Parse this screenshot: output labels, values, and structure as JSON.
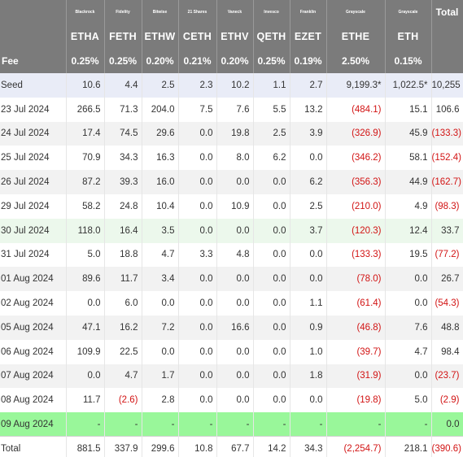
{
  "issuers": [
    "Blackrock",
    "Fidelity",
    "Bitwise",
    "21 Shares",
    "Vaneck",
    "Invesco",
    "Franklin",
    "Grayscale",
    "Grayscale"
  ],
  "total_header": "Total",
  "tickers": [
    "ETHA",
    "FETH",
    "ETHW",
    "CETH",
    "ETHV",
    "QETH",
    "EZET",
    "ETHE",
    "ETH"
  ],
  "fee_label": "Fee",
  "fees": [
    "0.25%",
    "0.25%",
    "0.20%",
    "0.21%",
    "0.20%",
    "0.25%",
    "0.19%",
    "2.50%",
    "0.15%"
  ],
  "rows": [
    {
      "date": "Seed",
      "cells": [
        "10.6",
        "4.4",
        "2.5",
        "2.3",
        "10.2",
        "1.1",
        "2.7",
        "9,199.3*",
        "1,022.5*",
        "10,255"
      ]
    },
    {
      "date": "23 Jul 2024",
      "cells": [
        "266.5",
        "71.3",
        "204.0",
        "7.5",
        "7.6",
        "5.5",
        "13.2",
        "(484.1)",
        "15.1",
        "106.6"
      ]
    },
    {
      "date": "24 Jul 2024",
      "cells": [
        "17.4",
        "74.5",
        "29.6",
        "0.0",
        "19.8",
        "2.5",
        "3.9",
        "(326.9)",
        "45.9",
        "(133.3)"
      ]
    },
    {
      "date": "25 Jul 2024",
      "cells": [
        "70.9",
        "34.3",
        "16.3",
        "0.0",
        "8.0",
        "6.2",
        "0.0",
        "(346.2)",
        "58.1",
        "(152.4)"
      ]
    },
    {
      "date": "26 Jul 2024",
      "cells": [
        "87.2",
        "39.3",
        "16.0",
        "0.0",
        "0.0",
        "0.0",
        "6.2",
        "(356.3)",
        "44.9",
        "(162.7)"
      ]
    },
    {
      "date": "29 Jul 2024",
      "cells": [
        "58.2",
        "24.8",
        "10.4",
        "0.0",
        "10.9",
        "0.0",
        "2.5",
        "(210.0)",
        "4.9",
        "(98.3)"
      ]
    },
    {
      "date": "30 Jul 2024",
      "cells": [
        "118.0",
        "16.4",
        "3.5",
        "0.0",
        "0.0",
        "0.0",
        "3.7",
        "(120.3)",
        "12.4",
        "33.7"
      ]
    },
    {
      "date": "31 Jul 2024",
      "cells": [
        "5.0",
        "18.8",
        "4.7",
        "3.3",
        "4.8",
        "0.0",
        "0.0",
        "(133.3)",
        "19.5",
        "(77.2)"
      ]
    },
    {
      "date": "01 Aug 2024",
      "cells": [
        "89.6",
        "11.7",
        "3.4",
        "0.0",
        "0.0",
        "0.0",
        "0.0",
        "(78.0)",
        "0.0",
        "26.7"
      ]
    },
    {
      "date": "02 Aug 2024",
      "cells": [
        "0.0",
        "6.0",
        "0.0",
        "0.0",
        "0.0",
        "0.0",
        "1.1",
        "(61.4)",
        "0.0",
        "(54.3)"
      ]
    },
    {
      "date": "05 Aug 2024",
      "cells": [
        "47.1",
        "16.2",
        "7.2",
        "0.0",
        "16.6",
        "0.0",
        "0.9",
        "(46.8)",
        "7.6",
        "48.8"
      ]
    },
    {
      "date": "06 Aug 2024",
      "cells": [
        "109.9",
        "22.5",
        "0.0",
        "0.0",
        "0.0",
        "0.0",
        "1.0",
        "(39.7)",
        "4.7",
        "98.4"
      ]
    },
    {
      "date": "07 Aug 2024",
      "cells": [
        "0.0",
        "4.7",
        "1.7",
        "0.0",
        "0.0",
        "0.0",
        "1.8",
        "(31.9)",
        "0.0",
        "(23.7)"
      ]
    },
    {
      "date": "08 Aug 2024",
      "cells": [
        "11.7",
        "(2.6)",
        "2.8",
        "0.0",
        "0.0",
        "0.0",
        "0.0",
        "(19.8)",
        "5.0",
        "(2.9)"
      ]
    },
    {
      "date": "09 Aug 2024",
      "cells": [
        "-",
        "-",
        "-",
        "-",
        "-",
        "-",
        "-",
        "-",
        "-",
        "0.0"
      ]
    },
    {
      "date": "Total",
      "cells": [
        "881.5",
        "337.9",
        "299.6",
        "10.8",
        "67.7",
        "14.2",
        "34.3",
        "(2,254.7)",
        "218.1",
        "(390.6)"
      ]
    }
  ],
  "colors": {
    "header_bg": "#7b7b7b",
    "negative": "#d21414",
    "seed_row": "#e9ecf7",
    "highlight_light": "#ecf8ec",
    "highlight_bright": "#99f79a",
    "zebra": "#f2f2f2"
  }
}
